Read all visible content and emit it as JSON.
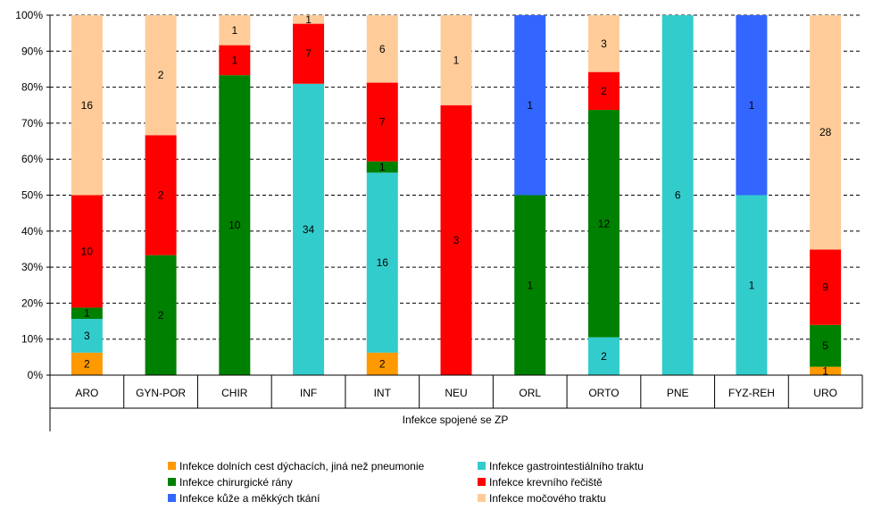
{
  "chart_data": {
    "type": "bar",
    "stacked": true,
    "normalized": true,
    "xlabel": "Infekce spojené se ZP",
    "ylabel": "",
    "ylim": [
      0,
      100
    ],
    "yticks": [
      "0%",
      "10%",
      "20%",
      "30%",
      "40%",
      "50%",
      "60%",
      "70%",
      "80%",
      "90%",
      "100%"
    ],
    "grid": "dashed horizontal",
    "legend_position": "bottom",
    "categories": [
      "ARO",
      "GYN-POR",
      "CHIR",
      "INF",
      "INT",
      "NEU",
      "ORL",
      "ORTO",
      "PNE",
      "FYZ-REH",
      "URO"
    ],
    "series": [
      {
        "name": "Infekce dolních cest dýchacích, jiná než pneumonie",
        "color": "#ff9900",
        "values": [
          2,
          0,
          0,
          0,
          2,
          0,
          0,
          0,
          0,
          0,
          1
        ]
      },
      {
        "name": "Infekce gastrointestiálního traktu",
        "color": "#33cccc",
        "values": [
          3,
          0,
          0,
          34,
          16,
          0,
          0,
          2,
          6,
          1,
          0
        ]
      },
      {
        "name": "Infekce chirurgické rány",
        "color": "#008000",
        "values": [
          1,
          2,
          10,
          0,
          1,
          0,
          1,
          12,
          0,
          0,
          5
        ]
      },
      {
        "name": "Infekce krevního řečiště",
        "color": "#ff0000",
        "values": [
          10,
          2,
          1,
          7,
          7,
          3,
          0,
          2,
          0,
          0,
          9
        ]
      },
      {
        "name": "Infekce kůže a měkkých tkání",
        "color": "#3366ff",
        "values": [
          0,
          0,
          0,
          0,
          0,
          0,
          1,
          0,
          0,
          1,
          0
        ]
      },
      {
        "name": "Infekce močového traktu",
        "color": "#ffcc99",
        "values": [
          16,
          2,
          1,
          1,
          6,
          1,
          0,
          3,
          0,
          0,
          28
        ]
      }
    ]
  }
}
